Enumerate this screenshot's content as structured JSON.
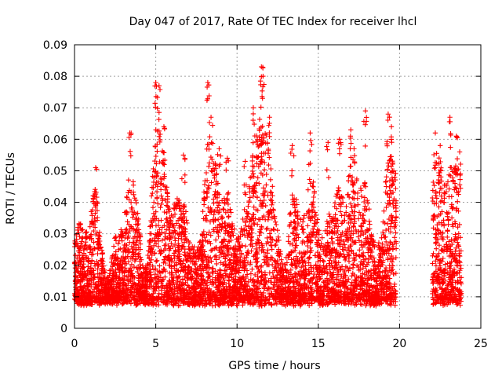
{
  "chart_data": {
    "type": "scatter",
    "title": "Day 047 of 2017, Rate Of TEC Index for receiver lhcl",
    "xlabel": "GPS time / hours",
    "ylabel": "ROTI / TECUs",
    "xlim": [
      0,
      25
    ],
    "ylim": [
      0,
      0.09
    ],
    "xticks": [
      "0",
      "5",
      "10",
      "15",
      "20",
      "25"
    ],
    "yticks": [
      "0",
      "0.01",
      "0.02",
      "0.03",
      "0.04",
      "0.05",
      "0.06",
      "0.07",
      "0.08",
      "0.09"
    ],
    "grid": true,
    "marker": "+",
    "color": "#ff0000",
    "data_gap_hours": [
      19.9,
      21.9
    ],
    "coverage_hours": [
      [
        0.0,
        19.8
      ],
      [
        22.0,
        23.8
      ]
    ],
    "typical_range": [
      0.005,
      0.04
    ],
    "peaks": [
      {
        "x": 1.3,
        "y": 0.051
      },
      {
        "x": 3.4,
        "y": 0.062
      },
      {
        "x": 5.0,
        "y": 0.078
      },
      {
        "x": 5.2,
        "y": 0.077
      },
      {
        "x": 5.5,
        "y": 0.064
      },
      {
        "x": 6.7,
        "y": 0.055
      },
      {
        "x": 8.2,
        "y": 0.078
      },
      {
        "x": 8.4,
        "y": 0.067
      },
      {
        "x": 8.9,
        "y": 0.057
      },
      {
        "x": 9.4,
        "y": 0.054
      },
      {
        "x": 10.5,
        "y": 0.053
      },
      {
        "x": 11.0,
        "y": 0.07
      },
      {
        "x": 11.5,
        "y": 0.083
      },
      {
        "x": 11.6,
        "y": 0.08
      },
      {
        "x": 12.0,
        "y": 0.067
      },
      {
        "x": 13.4,
        "y": 0.058
      },
      {
        "x": 14.5,
        "y": 0.062
      },
      {
        "x": 15.6,
        "y": 0.059
      },
      {
        "x": 16.3,
        "y": 0.06
      },
      {
        "x": 17.0,
        "y": 0.063
      },
      {
        "x": 17.2,
        "y": 0.057
      },
      {
        "x": 17.9,
        "y": 0.069
      },
      {
        "x": 19.3,
        "y": 0.068
      },
      {
        "x": 19.5,
        "y": 0.064
      },
      {
        "x": 22.2,
        "y": 0.062
      },
      {
        "x": 22.5,
        "y": 0.058
      },
      {
        "x": 23.1,
        "y": 0.067
      },
      {
        "x": 23.5,
        "y": 0.061
      },
      {
        "x": 23.7,
        "y": 0.056
      }
    ]
  }
}
